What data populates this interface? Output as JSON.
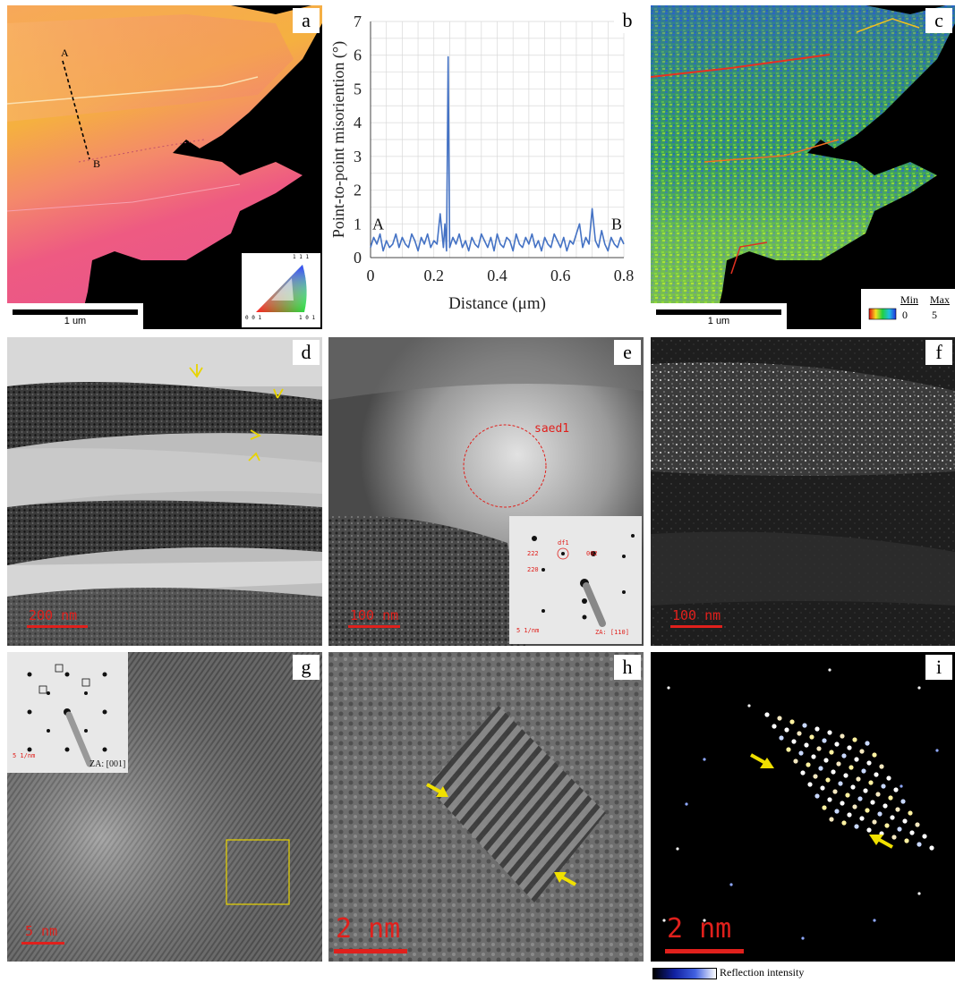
{
  "panels": {
    "a": {
      "label": "a",
      "point_a": "A",
      "point_b": "B",
      "scalebar": "1 um",
      "legend": {
        "top": "1 1 1",
        "left": "0 0 1",
        "right": "1 0 1"
      }
    },
    "b": {
      "label": "b"
    },
    "c": {
      "label": "c",
      "scalebar": "1 um",
      "legend": {
        "min_label": "Min",
        "max_label": "Max",
        "min_value": "0",
        "max_value": "5"
      }
    },
    "d": {
      "label": "d",
      "scalebar": "200 nm"
    },
    "e": {
      "label": "e",
      "scalebar": "100 nm",
      "circle_label": "saed1",
      "inset": {
        "spot_222": "222",
        "spot_df1": "df1",
        "spot_002": "002",
        "spot_220": "220",
        "scalebar": "5 1/nm",
        "zone": "ZA: [110]"
      }
    },
    "f": {
      "label": "f",
      "scalebar": "100 nm"
    },
    "g": {
      "label": "g",
      "scalebar": "5 nm",
      "inset": {
        "scalebar": "5 1/nm",
        "zone": "ZA: [001]"
      }
    },
    "h": {
      "label": "h",
      "scalebar": "2 nm"
    },
    "i": {
      "label": "i",
      "scalebar": "2 nm",
      "colorbar_label": "Reflection intensity"
    }
  },
  "chart_data": {
    "type": "line",
    "xlabel": "Distance (μm)",
    "ylabel": "Point-to-point misoriention (°)",
    "xlim": [
      0,
      0.8
    ],
    "ylim": [
      0,
      7
    ],
    "xticks": [
      "0",
      "0.2",
      "0.4",
      "0.6",
      "0.8"
    ],
    "yticks": [
      "0",
      "1",
      "2",
      "3",
      "4",
      "5",
      "6",
      "7"
    ],
    "grid": true,
    "annotations": {
      "start": "A",
      "end": "B"
    },
    "line_color": "#4472c4",
    "x": [
      0,
      0.01,
      0.02,
      0.03,
      0.04,
      0.05,
      0.06,
      0.07,
      0.08,
      0.09,
      0.1,
      0.11,
      0.12,
      0.13,
      0.14,
      0.15,
      0.16,
      0.17,
      0.18,
      0.19,
      0.2,
      0.21,
      0.22,
      0.23,
      0.235,
      0.24,
      0.245,
      0.25,
      0.26,
      0.27,
      0.28,
      0.29,
      0.3,
      0.31,
      0.32,
      0.33,
      0.34,
      0.35,
      0.36,
      0.37,
      0.38,
      0.39,
      0.4,
      0.41,
      0.42,
      0.43,
      0.44,
      0.45,
      0.46,
      0.47,
      0.48,
      0.49,
      0.5,
      0.51,
      0.52,
      0.53,
      0.54,
      0.55,
      0.56,
      0.57,
      0.58,
      0.59,
      0.6,
      0.61,
      0.62,
      0.63,
      0.64,
      0.65,
      0.66,
      0.67,
      0.68,
      0.69,
      0.7,
      0.71,
      0.72,
      0.73,
      0.74,
      0.75,
      0.76,
      0.77,
      0.78,
      0.79,
      0.8
    ],
    "y": [
      0.3,
      0.6,
      0.4,
      0.7,
      0.2,
      0.5,
      0.3,
      0.4,
      0.7,
      0.3,
      0.6,
      0.4,
      0.3,
      0.7,
      0.5,
      0.2,
      0.6,
      0.4,
      0.7,
      0.3,
      0.5,
      0.4,
      1.3,
      0.3,
      1.0,
      0.2,
      5.95,
      0.3,
      0.6,
      0.4,
      0.7,
      0.3,
      0.5,
      0.2,
      0.6,
      0.4,
      0.3,
      0.7,
      0.5,
      0.3,
      0.6,
      0.2,
      0.7,
      0.4,
      0.3,
      0.6,
      0.5,
      0.2,
      0.7,
      0.4,
      0.3,
      0.6,
      0.4,
      0.7,
      0.3,
      0.5,
      0.2,
      0.6,
      0.4,
      0.3,
      0.7,
      0.5,
      0.3,
      0.6,
      0.2,
      0.5,
      0.4,
      0.7,
      1.0,
      0.3,
      0.6,
      0.4,
      1.45,
      0.5,
      0.3,
      0.8,
      0.4,
      0.2,
      0.6,
      0.4,
      0.3,
      0.6,
      0.4
    ]
  }
}
